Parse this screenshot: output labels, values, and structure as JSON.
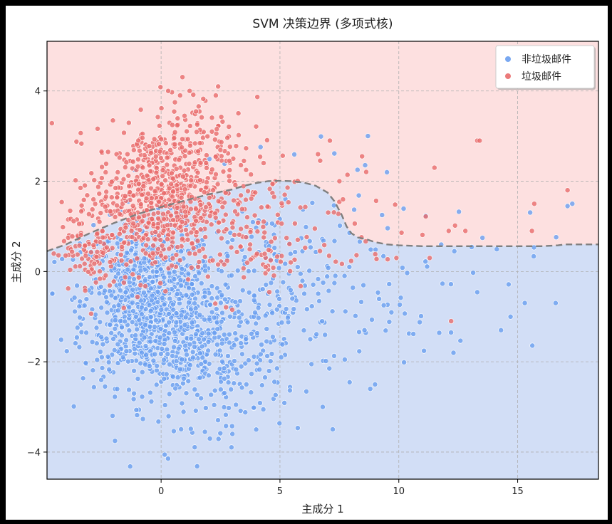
{
  "chart_data": {
    "type": "scatter",
    "title": "SVM 决策边界 (多项式核)",
    "xlabel": "主成分 1",
    "ylabel": "主成分 2",
    "xlim": [
      -4.8,
      18.4
    ],
    "ylim": [
      -4.6,
      5.1
    ],
    "xticks": [
      0,
      5,
      10,
      15
    ],
    "yticks": [
      -4,
      -2,
      0,
      2,
      4
    ],
    "grid": true,
    "legend_position": "top-right",
    "regions": {
      "upper_color": "#fde0e0",
      "lower_color": "#d2def6",
      "boundary_color": "#7f7f7f"
    },
    "boundary": {
      "x": [
        -4.8,
        -4.0,
        -3.0,
        -2.0,
        -1.0,
        0.0,
        1.0,
        2.0,
        3.0,
        3.5,
        4.0,
        4.5,
        5.0,
        5.5,
        6.0,
        6.5,
        7.0,
        7.3,
        7.6,
        7.8,
        8.0,
        8.3,
        8.6,
        9.0,
        9.5,
        10.0,
        11.0,
        12.0,
        13.0,
        14.0,
        15.0,
        16.0,
        16.7,
        17.0,
        18.4
      ],
      "y": [
        0.45,
        0.6,
        0.85,
        1.07,
        1.27,
        1.43,
        1.57,
        1.71,
        1.82,
        1.9,
        1.96,
        2.0,
        2.01,
        2.0,
        1.97,
        1.9,
        1.75,
        1.55,
        1.25,
        1.0,
        0.85,
        0.75,
        0.72,
        0.65,
        0.6,
        0.58,
        0.56,
        0.56,
        0.56,
        0.56,
        0.56,
        0.56,
        0.58,
        0.6,
        0.6
      ]
    },
    "series": [
      {
        "name": "非垃圾邮件",
        "color": "#6a9ff0",
        "clusters": [
          {
            "cx": -0.5,
            "cy": -0.7,
            "sx": 1.4,
            "sy": 0.9,
            "n": 900
          },
          {
            "cx": 2.2,
            "cy": -1.8,
            "sx": 1.5,
            "sy": 0.8,
            "n": 300
          },
          {
            "cx": 5.0,
            "cy": -0.5,
            "sx": 2.0,
            "sy": 1.2,
            "n": 180
          },
          {
            "cx": 10.0,
            "cy": 0.0,
            "sx": 3.0,
            "sy": 0.9,
            "n": 60
          }
        ],
        "points": [
          [
            8.7,
            3.0
          ],
          [
            9.5,
            2.2
          ],
          [
            17.3,
            1.5
          ],
          [
            17.1,
            1.45
          ],
          [
            16.6,
            -0.7
          ],
          [
            14.7,
            -1.0
          ],
          [
            15.3,
            -0.7
          ],
          [
            14.3,
            -1.3
          ],
          [
            3.0,
            -3.6
          ],
          [
            4.0,
            -3.5
          ],
          [
            6.8,
            -3.0
          ],
          [
            12.3,
            -1.8
          ],
          [
            9.0,
            -2.5
          ],
          [
            8.8,
            -2.6
          ]
        ]
      },
      {
        "name": "垃圾邮件",
        "color": "#e96b6b",
        "clusters": [
          {
            "cx": -0.2,
            "cy": 1.6,
            "sx": 1.3,
            "sy": 0.8,
            "n": 650
          },
          {
            "cx": 1.5,
            "cy": 2.7,
            "sx": 1.0,
            "sy": 0.7,
            "n": 120
          },
          {
            "cx": 3.5,
            "cy": 1.0,
            "sx": 1.5,
            "sy": 0.8,
            "n": 140
          },
          {
            "cx": -3.0,
            "cy": 0.6,
            "sx": 0.6,
            "sy": 0.5,
            "n": 100
          },
          {
            "cx": 8.5,
            "cy": 1.2,
            "sx": 1.5,
            "sy": 0.7,
            "n": 30
          }
        ],
        "points": [
          [
            13.3,
            2.9
          ],
          [
            13.4,
            2.9
          ],
          [
            17.1,
            1.8
          ],
          [
            15.7,
            1.5
          ],
          [
            15.6,
            0.9
          ],
          [
            12.8,
            0.9
          ],
          [
            11.5,
            2.3
          ],
          [
            12.1,
            0.9
          ],
          [
            11.3,
            0.3
          ],
          [
            12.2,
            -1.1
          ],
          [
            9.9,
            0.3
          ],
          [
            0.3,
            4.0
          ],
          [
            0.8,
            3.9
          ],
          [
            1.2,
            4.0
          ],
          [
            2.4,
            4.1
          ],
          [
            2.3,
            3.9
          ],
          [
            7.1,
            2.9
          ],
          [
            6.6,
            2.6
          ]
        ]
      }
    ]
  }
}
